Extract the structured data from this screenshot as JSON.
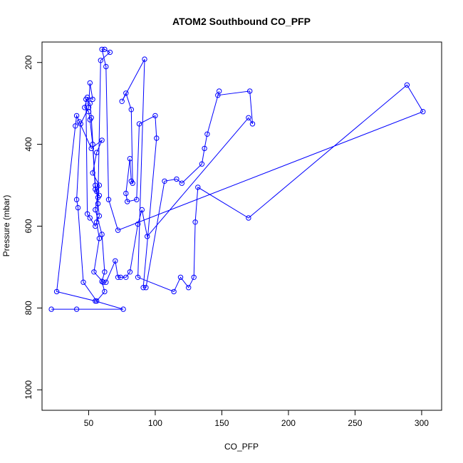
{
  "chart_data": {
    "type": "line",
    "title": "ATOM2 Southbound CO_PFP",
    "xlabel": "CO_PFP",
    "ylabel": "Pressure (mbar)",
    "xlim": [
      15,
      315
    ],
    "ylim": [
      1050,
      150
    ],
    "y_reversed": true,
    "x_ticks": [
      50,
      100,
      150,
      200,
      250,
      300
    ],
    "y_ticks": [
      200,
      400,
      600,
      800,
      1000
    ],
    "grid": false,
    "color": "#0000ff",
    "marker": "open-circle",
    "series": [
      {
        "values": [
          {
            "x": 22,
            "y": 803
          },
          {
            "x": 41,
            "y": 803
          },
          {
            "x": 76,
            "y": 803
          },
          {
            "x": 55,
            "y": 783
          },
          {
            "x": 26,
            "y": 760
          },
          {
            "x": 40,
            "y": 355
          },
          {
            "x": 41,
            "y": 330
          },
          {
            "x": 43,
            "y": 345
          },
          {
            "x": 52,
            "y": 410
          },
          {
            "x": 60,
            "y": 390
          },
          {
            "x": 56,
            "y": 420
          },
          {
            "x": 53,
            "y": 470
          },
          {
            "x": 58,
            "y": 500
          },
          {
            "x": 55,
            "y": 560
          },
          {
            "x": 60,
            "y": 620
          },
          {
            "x": 62,
            "y": 712
          },
          {
            "x": 60,
            "y": 735
          },
          {
            "x": 62,
            "y": 760
          },
          {
            "x": 56,
            "y": 783
          },
          {
            "x": 46,
            "y": 737
          },
          {
            "x": 42,
            "y": 555
          },
          {
            "x": 41,
            "y": 535
          },
          {
            "x": 44,
            "y": 350
          },
          {
            "x": 50,
            "y": 310
          },
          {
            "x": 51,
            "y": 250
          },
          {
            "x": 53,
            "y": 290
          },
          {
            "x": 49,
            "y": 285
          },
          {
            "x": 47,
            "y": 310
          },
          {
            "x": 50,
            "y": 320
          },
          {
            "x": 51,
            "y": 340
          },
          {
            "x": 53,
            "y": 400
          },
          {
            "x": 55,
            "y": 510
          },
          {
            "x": 57,
            "y": 530
          },
          {
            "x": 56,
            "y": 590
          },
          {
            "x": 58,
            "y": 630
          },
          {
            "x": 54,
            "y": 712
          },
          {
            "x": 61,
            "y": 737
          },
          {
            "x": 63,
            "y": 737
          },
          {
            "x": 70,
            "y": 685
          },
          {
            "x": 72,
            "y": 725
          },
          {
            "x": 74,
            "y": 725
          },
          {
            "x": 78,
            "y": 725
          },
          {
            "x": 81,
            "y": 712
          },
          {
            "x": 87,
            "y": 595
          },
          {
            "x": 90,
            "y": 560
          },
          {
            "x": 94,
            "y": 625
          },
          {
            "x": 170,
            "y": 335
          },
          {
            "x": 173,
            "y": 350
          },
          {
            "x": 171,
            "y": 270
          },
          {
            "x": 147,
            "y": 280
          },
          {
            "x": 148,
            "y": 270
          },
          {
            "x": 139,
            "y": 375
          },
          {
            "x": 137,
            "y": 410
          },
          {
            "x": 135,
            "y": 448
          },
          {
            "x": 120,
            "y": 495
          },
          {
            "x": 116,
            "y": 485
          },
          {
            "x": 107,
            "y": 490
          },
          {
            "x": 93,
            "y": 750
          },
          {
            "x": 91,
            "y": 750
          },
          {
            "x": 101,
            "y": 385
          },
          {
            "x": 100,
            "y": 330
          },
          {
            "x": 88,
            "y": 350
          },
          {
            "x": 86,
            "y": 535
          },
          {
            "x": 79,
            "y": 540
          },
          {
            "x": 78,
            "y": 520
          },
          {
            "x": 81,
            "y": 435
          },
          {
            "x": 82,
            "y": 490
          },
          {
            "x": 83,
            "y": 495
          },
          {
            "x": 82,
            "y": 315
          },
          {
            "x": 78,
            "y": 275
          },
          {
            "x": 75,
            "y": 295
          },
          {
            "x": 92,
            "y": 192
          },
          {
            "x": 87,
            "y": 725
          },
          {
            "x": 114,
            "y": 760
          },
          {
            "x": 119,
            "y": 725
          },
          {
            "x": 125,
            "y": 750
          },
          {
            "x": 129,
            "y": 725
          },
          {
            "x": 130,
            "y": 590
          },
          {
            "x": 132,
            "y": 505
          },
          {
            "x": 170,
            "y": 580
          },
          {
            "x": 289,
            "y": 255
          },
          {
            "x": 301,
            "y": 320
          },
          {
            "x": 72,
            "y": 610
          },
          {
            "x": 65,
            "y": 535
          },
          {
            "x": 63,
            "y": 210
          },
          {
            "x": 60,
            "y": 168
          },
          {
            "x": 62,
            "y": 168
          },
          {
            "x": 66,
            "y": 175
          },
          {
            "x": 59,
            "y": 195
          },
          {
            "x": 57,
            "y": 545
          },
          {
            "x": 58,
            "y": 575
          },
          {
            "x": 55,
            "y": 600
          },
          {
            "x": 51,
            "y": 580
          },
          {
            "x": 49,
            "y": 570
          },
          {
            "x": 48,
            "y": 290
          },
          {
            "x": 51,
            "y": 300
          },
          {
            "x": 52,
            "y": 335
          },
          {
            "x": 55,
            "y": 500
          },
          {
            "x": 56,
            "y": 515
          },
          {
            "x": 58,
            "y": 525
          }
        ]
      }
    ]
  }
}
